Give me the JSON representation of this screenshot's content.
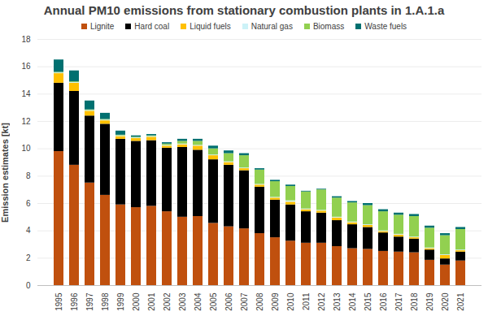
{
  "chart_data": {
    "type": "bar",
    "title": "Annual PM10 emissions from stationary combustion plants in 1.A.1.a",
    "y_label": "Emission estimates [kt]",
    "categories": [
      "1995",
      "1996",
      "1997",
      "1998",
      "1999",
      "2000",
      "2001",
      "2002",
      "2003",
      "2004",
      "2005",
      "2006",
      "2007",
      "2008",
      "2009",
      "2010",
      "2011",
      "2012",
      "2013",
      "2014",
      "2015",
      "2016",
      "2017",
      "2018",
      "2019",
      "2020",
      "2021"
    ],
    "series": [
      {
        "name": "Lignite",
        "color": "#c0500e",
        "values": [
          9.8,
          8.8,
          7.5,
          6.6,
          5.9,
          5.7,
          5.8,
          5.4,
          5.0,
          5.05,
          4.55,
          4.3,
          4.15,
          3.8,
          3.5,
          3.25,
          3.1,
          3.1,
          2.85,
          2.7,
          2.65,
          2.5,
          2.45,
          2.4,
          1.85,
          1.5,
          1.8
        ]
      },
      {
        "name": "Hard coal",
        "color": "#000000",
        "values": [
          5.0,
          5.4,
          4.9,
          5.2,
          4.8,
          4.85,
          4.8,
          4.65,
          5.1,
          4.85,
          4.65,
          4.5,
          4.25,
          3.4,
          2.75,
          2.65,
          2.3,
          2.2,
          1.9,
          1.75,
          1.6,
          1.35,
          1.1,
          1.0,
          0.75,
          0.45,
          0.65
        ]
      },
      {
        "name": "Liquid fuels",
        "color": "#ffc000",
        "values": [
          0.7,
          0.6,
          0.35,
          0.25,
          0.2,
          0.2,
          0.25,
          0.15,
          0.2,
          0.3,
          0.3,
          0.2,
          0.15,
          0.15,
          0.15,
          0.2,
          0.15,
          0.15,
          0.2,
          0.15,
          0.15,
          0.1,
          0.15,
          0.1,
          0.1,
          0.25,
          0.1
        ]
      },
      {
        "name": "Natural gas",
        "color": "#ccf2f7",
        "values": [
          0.05,
          0.05,
          0.05,
          0.05,
          0.05,
          0.05,
          0.05,
          0.05,
          0.05,
          0.05,
          0.05,
          0.05,
          0.05,
          0.05,
          0.05,
          0.1,
          0.05,
          0.05,
          0.05,
          0.05,
          0.05,
          0.05,
          0.05,
          0.05,
          0.05,
          0.05,
          0.05
        ]
      },
      {
        "name": "Biomass",
        "color": "#92d050",
        "values": [
          0.05,
          0.05,
          0.05,
          0.05,
          0.05,
          0.05,
          0.05,
          0.1,
          0.2,
          0.3,
          0.45,
          0.6,
          0.9,
          1.05,
          1.15,
          1.05,
          1.25,
          1.5,
          1.4,
          1.4,
          1.4,
          1.4,
          1.4,
          1.5,
          1.45,
          1.4,
          1.5
        ]
      },
      {
        "name": "Waste fuels",
        "color": "#007070",
        "values": [
          0.9,
          0.8,
          0.65,
          0.45,
          0.3,
          0.1,
          0.1,
          0.1,
          0.15,
          0.15,
          0.2,
          0.2,
          0.15,
          0.1,
          0.1,
          0.1,
          0.05,
          0.05,
          0.1,
          0.1,
          0.15,
          0.15,
          0.15,
          0.15,
          0.15,
          0.15,
          0.15
        ]
      }
    ],
    "ylim": [
      0,
      18
    ],
    "yticks": [
      0,
      2,
      4,
      6,
      8,
      10,
      12,
      14,
      16,
      18
    ],
    "stacked": true,
    "grid": true,
    "legend": "top"
  }
}
